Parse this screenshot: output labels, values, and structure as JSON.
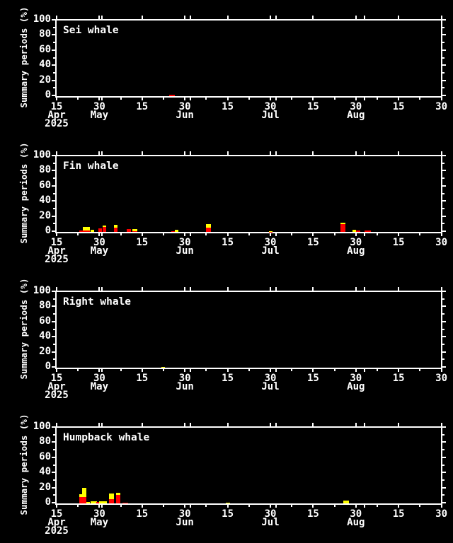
{
  "colors": {
    "background": "#000000",
    "axis": "#ffffff",
    "red": "#ff0000",
    "yellow": "#ffff00"
  },
  "y_axis": {
    "title": "Summary periods (%)",
    "tick_labels": [
      "0",
      "20",
      "40",
      "60",
      "80",
      "100"
    ],
    "range": [
      0,
      100
    ]
  },
  "x_axis": {
    "tick_labels": [
      "15",
      "30",
      "15",
      "30",
      "15",
      "30",
      "15",
      "30",
      "15",
      "30"
    ],
    "month_labels": [
      {
        "tick_index": 0,
        "label": "Apr"
      },
      {
        "tick_index": 1,
        "label": "May"
      },
      {
        "tick_index": 3,
        "label": "Jun"
      },
      {
        "tick_index": 5,
        "label": "Jul"
      },
      {
        "tick_index": 7,
        "label": "Aug"
      }
    ],
    "year_label": {
      "tick_index": 0,
      "label": "2025"
    },
    "start_date": "2025-04-15"
  },
  "chart_data": [
    {
      "type": "bar",
      "title": "Sei whale",
      "ylabel": "Summary periods (%)",
      "ylim": [
        0,
        100
      ],
      "x_unit": "days since 2025-04-15",
      "bars": [
        {
          "day": 39.5,
          "span_days": 1.9,
          "red_pct": 2.2,
          "yellow_pct": 0
        }
      ]
    },
    {
      "type": "bar",
      "title": "Fin whale",
      "ylabel": "Summary periods (%)",
      "ylim": [
        0,
        100
      ],
      "x_unit": "days since 2025-04-15",
      "bars": [
        {
          "day": 8.0,
          "span_days": 1.2,
          "red_pct": 2.0,
          "yellow_pct": 0
        },
        {
          "day": 9.2,
          "span_days": 2.5,
          "red_pct": 2.0,
          "yellow_pct": 4.4
        },
        {
          "day": 11.9,
          "span_days": 1.2,
          "red_pct": 0,
          "yellow_pct": 2.5
        },
        {
          "day": 14.6,
          "span_days": 1.3,
          "red_pct": 5.0,
          "yellow_pct": 0
        },
        {
          "day": 16.2,
          "span_days": 1.2,
          "red_pct": 6.3,
          "yellow_pct": 2.3
        },
        {
          "day": 20.0,
          "span_days": 1.3,
          "red_pct": 5.6,
          "yellow_pct": 3.7
        },
        {
          "day": 24.7,
          "span_days": 1.5,
          "red_pct": 3.7,
          "yellow_pct": 0
        },
        {
          "day": 26.6,
          "span_days": 1.7,
          "red_pct": 1.2,
          "yellow_pct": 2.3
        },
        {
          "day": 40.2,
          "span_days": 1.3,
          "red_pct": 1.3,
          "yellow_pct": 0
        },
        {
          "day": 41.5,
          "span_days": 1.2,
          "red_pct": 0,
          "yellow_pct": 2.8
        },
        {
          "day": 52.5,
          "span_days": 1.6,
          "red_pct": 5.6,
          "yellow_pct": 4.3
        },
        {
          "day": 74.5,
          "span_days": 1.3,
          "red_pct": 0.4,
          "yellow_pct": 1.0
        },
        {
          "day": 99.7,
          "span_days": 1.6,
          "red_pct": 10.5,
          "yellow_pct": 1.2
        },
        {
          "day": 103.8,
          "span_days": 1.2,
          "red_pct": 0,
          "yellow_pct": 2.4
        },
        {
          "day": 105.0,
          "span_days": 1.5,
          "red_pct": 1.9,
          "yellow_pct": 0
        },
        {
          "day": 108.0,
          "span_days": 2.2,
          "red_pct": 1.8,
          "yellow_pct": 0
        }
      ]
    },
    {
      "type": "bar",
      "title": "Right whale",
      "ylabel": "Summary periods (%)",
      "ylim": [
        0,
        100
      ],
      "x_unit": "days since 2025-04-15",
      "bars": [
        {
          "day": 36.8,
          "span_days": 1.2,
          "red_pct": 0,
          "yellow_pct": 1.0
        }
      ]
    },
    {
      "type": "bar",
      "title": "Humpback whale",
      "ylabel": "Summary periods (%)",
      "ylim": [
        0,
        100
      ],
      "x_unit": "days since 2025-04-15",
      "bars": [
        {
          "day": 7.9,
          "span_days": 1.0,
          "red_pct": 8.4,
          "yellow_pct": 3.7
        },
        {
          "day": 8.9,
          "span_days": 1.5,
          "red_pct": 8.4,
          "yellow_pct": 12.1
        },
        {
          "day": 10.4,
          "span_days": 1.3,
          "red_pct": 0,
          "yellow_pct": 2.2
        },
        {
          "day": 11.9,
          "span_days": 2.2,
          "red_pct": 0,
          "yellow_pct": 2.8
        },
        {
          "day": 13.8,
          "span_days": 1.2,
          "red_pct": 1.5,
          "yellow_pct": 0
        },
        {
          "day": 15.0,
          "span_days": 1.4,
          "red_pct": 0,
          "yellow_pct": 3.2
        },
        {
          "day": 16.4,
          "span_days": 1.2,
          "red_pct": 0,
          "yellow_pct": 2.8
        },
        {
          "day": 18.4,
          "span_days": 1.7,
          "red_pct": 5.5,
          "yellow_pct": 8.0
        },
        {
          "day": 20.9,
          "span_days": 1.5,
          "red_pct": 11.0,
          "yellow_pct": 2.8
        },
        {
          "day": 23.1,
          "span_days": 2.0,
          "red_pct": 1.3,
          "yellow_pct": 0
        },
        {
          "day": 59.4,
          "span_days": 1.4,
          "red_pct": 0,
          "yellow_pct": 1.0
        },
        {
          "day": 100.6,
          "span_days": 2.0,
          "red_pct": 0,
          "yellow_pct": 3.7
        }
      ]
    }
  ]
}
